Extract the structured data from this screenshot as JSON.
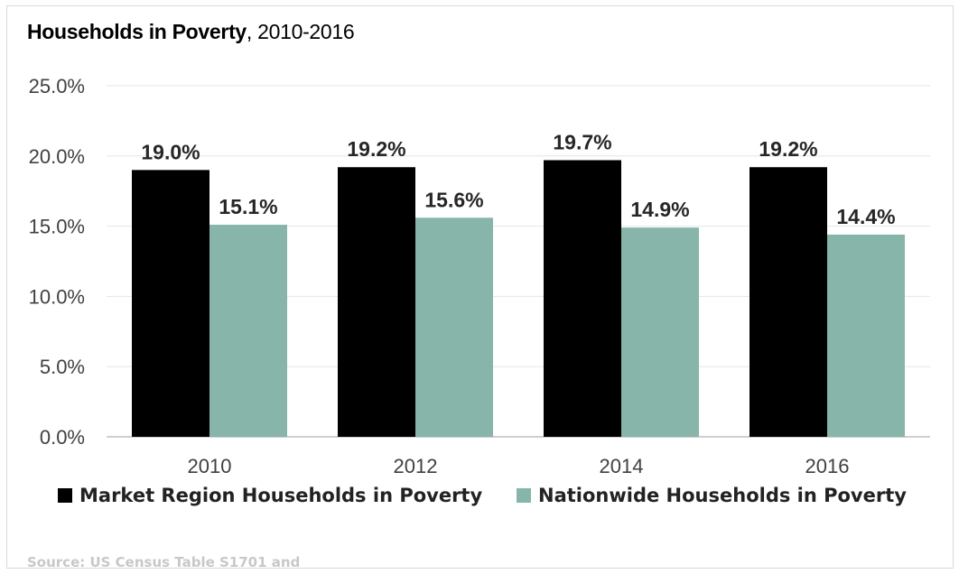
{
  "chart_data": {
    "type": "bar",
    "title_bold": "Households in Poverty",
    "title_rest": ", 2010-2016",
    "categories": [
      "2010",
      "2012",
      "2014",
      "2016"
    ],
    "series": [
      {
        "name": "Market Region Households in Poverty",
        "values": [
          19.0,
          19.2,
          19.7,
          19.2
        ],
        "labels": [
          "19.0%",
          "19.2%",
          "19.7%",
          "19.2%"
        ],
        "color": "#000000"
      },
      {
        "name": "Nationwide Households in Poverty",
        "values": [
          15.1,
          15.6,
          14.9,
          14.4
        ],
        "labels": [
          "15.1%",
          "15.6%",
          "14.9%",
          "14.4%"
        ],
        "color": "#87b5aa"
      }
    ],
    "yticks": [
      "0.0%",
      "5.0%",
      "10.0%",
      "15.0%",
      "20.0%",
      "25.0%"
    ],
    "ylim": [
      0,
      25
    ],
    "grid": true,
    "legend_position": "bottom-left"
  },
  "source_text": "Source: US Census Table S1701 and"
}
